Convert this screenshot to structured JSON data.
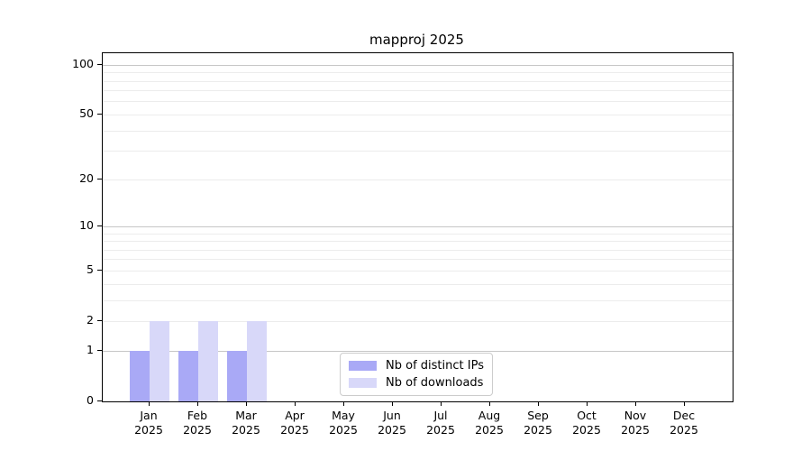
{
  "chart_data": {
    "type": "bar",
    "title": "mapproj 2025",
    "categories": [
      "Jan",
      "Feb",
      "Mar",
      "Apr",
      "May",
      "Jun",
      "Jul",
      "Aug",
      "Sep",
      "Oct",
      "Nov",
      "Dec"
    ],
    "category_year": "2025",
    "series": [
      {
        "name": "Nb of distinct IPs",
        "color": "#a9a9f6",
        "values": [
          1,
          1,
          1,
          0,
          0,
          0,
          0,
          0,
          0,
          0,
          0,
          0
        ]
      },
      {
        "name": "Nb of downloads",
        "color": "#d8d8f9",
        "values": [
          2,
          2,
          2,
          0,
          0,
          0,
          0,
          0,
          0,
          0,
          0,
          0
        ]
      }
    ],
    "yscale": "log1p",
    "ylim": [
      0,
      118
    ],
    "yticks": [
      0,
      1,
      2,
      5,
      10,
      20,
      50,
      100
    ],
    "gridlines": {
      "major": [
        1,
        10,
        100
      ],
      "minor": [
        2,
        3,
        4,
        5,
        6,
        7,
        8,
        9,
        20,
        30,
        40,
        50,
        60,
        70,
        80,
        90
      ]
    },
    "grid_color_major": "#c6c6c6",
    "grid_color_minor": "#ececec",
    "legend_position": "lower center",
    "xlabel": "",
    "ylabel": ""
  }
}
